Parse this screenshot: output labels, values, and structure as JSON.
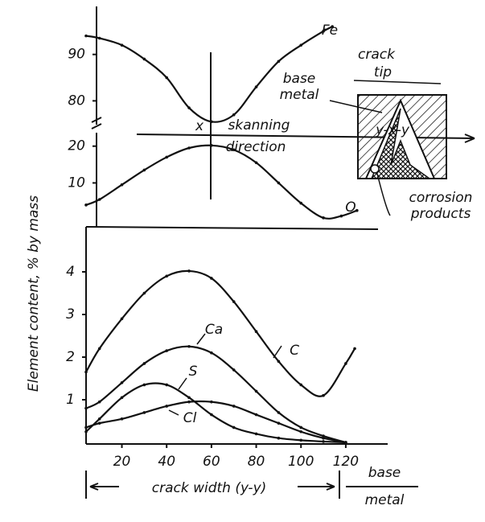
{
  "chart_data": [
    {
      "type": "line",
      "ylabel": "Element content, % by mass",
      "xlim": [
        4,
        138
      ],
      "ylim": [
        74,
        100
      ],
      "yticks": [
        80,
        90
      ],
      "x": [
        4,
        10,
        20,
        30,
        40,
        50,
        60,
        70,
        80,
        90,
        100,
        110,
        114
      ],
      "series": [
        {
          "name": "Fe",
          "color": "#111111",
          "values": [
            94,
            93.5,
            92,
            89,
            85,
            78.5,
            75.5,
            77,
            83,
            88.5,
            92,
            95,
            96
          ]
        }
      ],
      "annotations": [
        "x",
        "skanning",
        "direction",
        "crack",
        "tip",
        "base",
        "metal",
        "y-x-y",
        "corrosion",
        "products"
      ]
    },
    {
      "type": "line",
      "xlim": [
        4,
        138
      ],
      "ylim": [
        -1.5,
        23
      ],
      "yticks": [
        10,
        20
      ],
      "x": [
        4,
        10,
        20,
        30,
        40,
        50,
        60,
        70,
        80,
        90,
        100,
        110,
        118,
        125
      ],
      "series": [
        {
          "name": "O",
          "color": "#111111",
          "values": [
            4,
            5.5,
            9.5,
            13.5,
            17,
            19.5,
            20.2,
            19,
            15.5,
            10,
            4.5,
            0.5,
            1,
            2.5
          ]
        }
      ]
    },
    {
      "type": "line",
      "xlabel": "crack width (y-y)",
      "xlim": [
        4,
        138
      ],
      "ylim": [
        0,
        5
      ],
      "xticks": [
        20,
        40,
        60,
        80,
        100,
        120
      ],
      "yticks": [
        1,
        2,
        3,
        4
      ],
      "x": [
        4,
        10,
        20,
        30,
        40,
        50,
        60,
        70,
        80,
        90,
        100,
        110,
        120,
        124
      ],
      "series": [
        {
          "name": "C",
          "color": "#111111",
          "values": [
            1.65,
            2.2,
            2.9,
            3.5,
            3.9,
            4.02,
            3.85,
            3.3,
            2.6,
            1.9,
            1.35,
            1.1,
            1.85,
            2.2
          ]
        },
        {
          "name": "Ca",
          "color": "#111111",
          "values": [
            0.8,
            0.95,
            1.4,
            1.85,
            2.15,
            2.25,
            2.1,
            1.7,
            1.2,
            0.7,
            0.35,
            0.15,
            0,
            null
          ]
        },
        {
          "name": "S",
          "color": "#111111",
          "values": [
            0.25,
            0.55,
            1.05,
            1.35,
            1.35,
            1.05,
            0.65,
            0.35,
            0.2,
            0.1,
            0.05,
            0.02,
            0,
            null
          ]
        },
        {
          "name": "Cl",
          "color": "#111111",
          "values": [
            0.35,
            0.45,
            0.55,
            0.7,
            0.85,
            0.95,
            0.95,
            0.85,
            0.65,
            0.45,
            0.25,
            0.1,
            0,
            null
          ]
        }
      ],
      "annotations": [
        "base",
        "metal"
      ]
    }
  ]
}
